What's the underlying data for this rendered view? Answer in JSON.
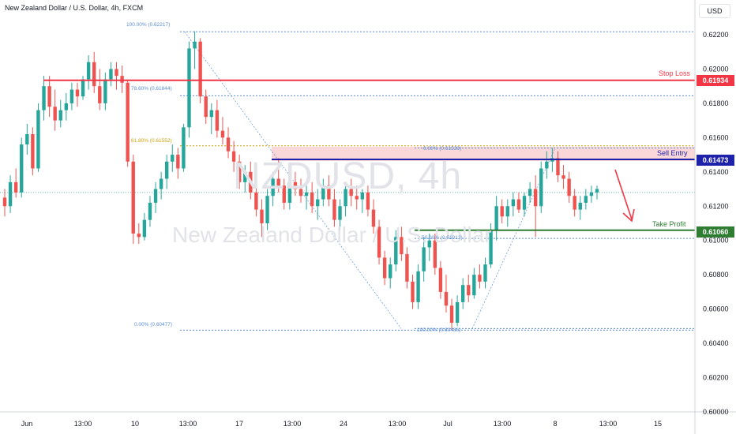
{
  "header": {
    "symbol_title": "New Zealand Dollar / U.S. Dollar, 4h, FXCM",
    "currency": "USD"
  },
  "watermark": {
    "symbol": "NZDUSD, 4h",
    "name": "New Zealand Dollar / U.S. Dollar"
  },
  "levels": {
    "stop_loss": {
      "label": "Stop Loss",
      "price": "0.61934",
      "color": "#f23645"
    },
    "sell_entry": {
      "label": "Sell Entry",
      "price": "0.61473",
      "color": "#1e22aa"
    },
    "take_profit": {
      "label": "Take Profit",
      "price": "0.61060",
      "color": "#2e7d32"
    }
  },
  "fib_left": [
    {
      "text": "100.00% (0.62217)",
      "color": "#5b8dd6"
    },
    {
      "text": "78.60% (0.61844)",
      "color": "#5b8dd6"
    },
    {
      "text": "61.80% (0.61552)",
      "color": "#d1a10a"
    },
    {
      "text": "0.00% (0.60477)",
      "color": "#5b8dd6"
    }
  ],
  "fib_right": [
    {
      "text": "0.00% (0.61539)",
      "color": "#5b8dd6"
    },
    {
      "text": "50.00% (0.61012)",
      "color": "#5b8dd6"
    },
    {
      "text": "100.00% (0.60486)",
      "color": "#5b8dd6"
    }
  ],
  "chart_data": {
    "type": "candlestick",
    "ylim": [
      0.6,
      0.623
    ],
    "y_ticks": [
      "0.62200",
      "0.62000",
      "0.61800",
      "0.61600",
      "0.61400",
      "0.61200",
      "0.61000",
      "0.60800",
      "0.60600",
      "0.60400",
      "0.60200",
      "0.60000"
    ],
    "x_ticks": [
      "Jun",
      "13:00",
      "10",
      "13:00",
      "17",
      "13:00",
      "24",
      "13:00",
      "Jul",
      "13:00",
      "8",
      "13:00",
      "15"
    ],
    "current_price_line": 0.6128,
    "candles": [
      [
        0.6125,
        0.613,
        0.6114,
        0.612
      ],
      [
        0.612,
        0.6138,
        0.6116,
        0.6134
      ],
      [
        0.6134,
        0.6142,
        0.6125,
        0.6128
      ],
      [
        0.6128,
        0.616,
        0.6125,
        0.6156
      ],
      [
        0.6156,
        0.6168,
        0.615,
        0.6162
      ],
      [
        0.6162,
        0.6166,
        0.6138,
        0.6142
      ],
      [
        0.6142,
        0.618,
        0.614,
        0.6176
      ],
      [
        0.6176,
        0.6196,
        0.617,
        0.619
      ],
      [
        0.619,
        0.6196,
        0.6172,
        0.6178
      ],
      [
        0.6178,
        0.6188,
        0.6164,
        0.617
      ],
      [
        0.617,
        0.6182,
        0.6166,
        0.6176
      ],
      [
        0.6176,
        0.6186,
        0.617,
        0.618
      ],
      [
        0.618,
        0.6192,
        0.6176,
        0.6188
      ],
      [
        0.6188,
        0.6192,
        0.6178,
        0.6184
      ],
      [
        0.6184,
        0.6196,
        0.6182,
        0.6194
      ],
      [
        0.6194,
        0.6208,
        0.6188,
        0.6204
      ],
      [
        0.6204,
        0.621,
        0.6186,
        0.619
      ],
      [
        0.619,
        0.62,
        0.6176,
        0.618
      ],
      [
        0.618,
        0.6198,
        0.6176,
        0.6194
      ],
      [
        0.6194,
        0.6204,
        0.619,
        0.62
      ],
      [
        0.62,
        0.6204,
        0.6188,
        0.6196
      ],
      [
        0.6196,
        0.6202,
        0.6186,
        0.6192
      ],
      [
        0.6192,
        0.6194,
        0.6143,
        0.6146
      ],
      [
        0.6146,
        0.615,
        0.6098,
        0.6104
      ],
      [
        0.6104,
        0.611,
        0.6098,
        0.6102
      ],
      [
        0.6102,
        0.6116,
        0.61,
        0.6112
      ],
      [
        0.6112,
        0.6126,
        0.6108,
        0.6122
      ],
      [
        0.6122,
        0.6134,
        0.6116,
        0.613
      ],
      [
        0.613,
        0.614,
        0.6124,
        0.6136
      ],
      [
        0.6136,
        0.615,
        0.613,
        0.6146
      ],
      [
        0.6146,
        0.6156,
        0.614,
        0.615
      ],
      [
        0.615,
        0.6154,
        0.6136,
        0.6142
      ],
      [
        0.6142,
        0.6168,
        0.614,
        0.6166
      ],
      [
        0.6166,
        0.6216,
        0.616,
        0.6212
      ],
      [
        0.6212,
        0.6222,
        0.62,
        0.6216
      ],
      [
        0.6216,
        0.6218,
        0.618,
        0.6184
      ],
      [
        0.6184,
        0.6188,
        0.6168,
        0.6172
      ],
      [
        0.6172,
        0.618,
        0.6162,
        0.6176
      ],
      [
        0.6176,
        0.6182,
        0.616,
        0.6164
      ],
      [
        0.6164,
        0.6172,
        0.6156,
        0.616
      ],
      [
        0.616,
        0.6166,
        0.6148,
        0.6152
      ],
      [
        0.6152,
        0.6158,
        0.614,
        0.6146
      ],
      [
        0.6146,
        0.615,
        0.613,
        0.6134
      ],
      [
        0.6134,
        0.6144,
        0.6128,
        0.614
      ],
      [
        0.614,
        0.6146,
        0.6124,
        0.6128
      ],
      [
        0.6128,
        0.6134,
        0.6114,
        0.6118
      ],
      [
        0.6118,
        0.6124,
        0.6102,
        0.611
      ],
      [
        0.611,
        0.613,
        0.6106,
        0.6126
      ],
      [
        0.6126,
        0.614,
        0.612,
        0.6136
      ],
      [
        0.6136,
        0.6148,
        0.6128,
        0.6132
      ],
      [
        0.6132,
        0.6136,
        0.6118,
        0.6122
      ],
      [
        0.6122,
        0.6138,
        0.6118,
        0.6134
      ],
      [
        0.6134,
        0.614,
        0.6126,
        0.613
      ],
      [
        0.613,
        0.6136,
        0.6122,
        0.6126
      ],
      [
        0.6126,
        0.6132,
        0.6118,
        0.6128
      ],
      [
        0.6128,
        0.6134,
        0.6116,
        0.612
      ],
      [
        0.612,
        0.613,
        0.6112,
        0.6124
      ],
      [
        0.6124,
        0.6136,
        0.612,
        0.6132
      ],
      [
        0.6132,
        0.6138,
        0.612,
        0.6124
      ],
      [
        0.6124,
        0.613,
        0.6108,
        0.6112
      ],
      [
        0.6112,
        0.6124,
        0.6106,
        0.612
      ],
      [
        0.612,
        0.6134,
        0.6114,
        0.613
      ],
      [
        0.613,
        0.6136,
        0.612,
        0.6126
      ],
      [
        0.6126,
        0.6132,
        0.6118,
        0.6124
      ],
      [
        0.6124,
        0.613,
        0.6116,
        0.6128
      ],
      [
        0.6128,
        0.6132,
        0.6114,
        0.6118
      ],
      [
        0.6118,
        0.6124,
        0.6104,
        0.6108
      ],
      [
        0.6108,
        0.6112,
        0.6086,
        0.609
      ],
      [
        0.609,
        0.6094,
        0.6074,
        0.6078
      ],
      [
        0.6078,
        0.609,
        0.6072,
        0.6086
      ],
      [
        0.6086,
        0.6106,
        0.6082,
        0.6102
      ],
      [
        0.6102,
        0.6108,
        0.6088,
        0.6092
      ],
      [
        0.6092,
        0.6096,
        0.6072,
        0.6076
      ],
      [
        0.6076,
        0.608,
        0.606,
        0.6064
      ],
      [
        0.6064,
        0.6086,
        0.606,
        0.6082
      ],
      [
        0.6082,
        0.6102,
        0.6076,
        0.6096
      ],
      [
        0.6096,
        0.6104,
        0.6088,
        0.61
      ],
      [
        0.61,
        0.6104,
        0.608,
        0.6084
      ],
      [
        0.6084,
        0.6088,
        0.6066,
        0.607
      ],
      [
        0.607,
        0.608,
        0.6058,
        0.6062
      ],
      [
        0.6062,
        0.6066,
        0.6048,
        0.6052
      ],
      [
        0.6052,
        0.6068,
        0.605,
        0.6064
      ],
      [
        0.6064,
        0.6078,
        0.606,
        0.6074
      ],
      [
        0.6074,
        0.608,
        0.6064,
        0.6068
      ],
      [
        0.6068,
        0.6084,
        0.6066,
        0.608
      ],
      [
        0.608,
        0.6086,
        0.6072,
        0.6076
      ],
      [
        0.6076,
        0.609,
        0.6072,
        0.6086
      ],
      [
        0.6086,
        0.611,
        0.6084,
        0.6106
      ],
      [
        0.6106,
        0.6126,
        0.61,
        0.612
      ],
      [
        0.612,
        0.6124,
        0.611,
        0.6114
      ],
      [
        0.6114,
        0.6124,
        0.6108,
        0.612
      ],
      [
        0.612,
        0.6128,
        0.6114,
        0.6124
      ],
      [
        0.6124,
        0.6128,
        0.6116,
        0.6118
      ],
      [
        0.6118,
        0.6128,
        0.6114,
        0.6126
      ],
      [
        0.6126,
        0.6134,
        0.6122,
        0.613
      ],
      [
        0.613,
        0.6138,
        0.6102,
        0.612
      ],
      [
        0.612,
        0.6146,
        0.6116,
        0.6142
      ],
      [
        0.6142,
        0.6152,
        0.6136,
        0.6146
      ],
      [
        0.6146,
        0.6154,
        0.614,
        0.6148
      ],
      [
        0.6148,
        0.6152,
        0.6134,
        0.6138
      ],
      [
        0.6138,
        0.6144,
        0.613,
        0.6136
      ],
      [
        0.6136,
        0.614,
        0.6122,
        0.6126
      ],
      [
        0.6126,
        0.613,
        0.6114,
        0.6118
      ],
      [
        0.6118,
        0.6126,
        0.6112,
        0.6122
      ],
      [
        0.6122,
        0.613,
        0.6118,
        0.6126
      ],
      [
        0.6126,
        0.6132,
        0.6122,
        0.6128
      ],
      [
        0.6128,
        0.6132,
        0.6124,
        0.613
      ]
    ]
  }
}
